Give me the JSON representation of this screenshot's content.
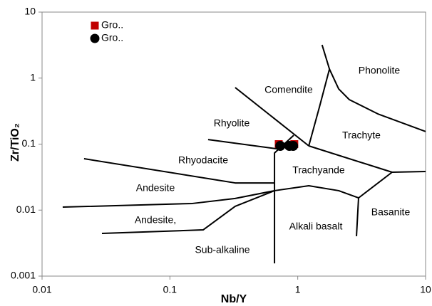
{
  "chart_data": {
    "type": "scatter",
    "xlabel": "Nb/Y",
    "ylabel": "Zr/TiO₂",
    "xscale": "log",
    "yscale": "log",
    "xlim": [
      0.01,
      10
    ],
    "ylim": [
      0.001,
      10
    ],
    "xticks": [
      0.01,
      0.1,
      1,
      10
    ],
    "yticks": [
      0.001,
      0.01,
      0.1,
      1,
      10
    ],
    "grid": false,
    "legend": "upper left",
    "series": [
      {
        "name": "Gro..",
        "color": "#c00000",
        "marker": "square",
        "x": [
          0.71,
          0.94
        ],
        "y": [
          0.1,
          0.1
        ]
      },
      {
        "name": "Gro..",
        "color": "#000000",
        "marker": "circle",
        "x": [
          0.73,
          0.86,
          0.92
        ],
        "y": [
          0.094,
          0.094,
          0.094
        ]
      }
    ],
    "boundaries": [
      {
        "x": [
          0.324,
          1.22
        ],
        "y": [
          0.72,
          0.094
        ]
      },
      {
        "x": [
          1.55,
          1.77,
          1.48,
          1.22
        ],
        "y": [
          3.19,
          1.37,
          0.368,
          0.094
        ]
      },
      {
        "x": [
          1.77,
          2.09,
          2.53,
          4.23,
          10
        ],
        "y": [
          1.37,
          0.686,
          0.472,
          0.287,
          0.155
        ]
      },
      {
        "x": [
          1.22,
          5.47,
          10
        ],
        "y": [
          0.094,
          0.0375,
          0.0385
        ]
      },
      {
        "x": [
          0.199,
          0.748
        ],
        "y": [
          0.117,
          0.083
        ]
      },
      {
        "x": [
          0.658,
          0.658,
          0.93
        ],
        "y": [
          0.00156,
          0.0733,
          0.136
        ]
      },
      {
        "x": [
          0.0213,
          0.324,
          0.658
        ],
        "y": [
          0.0601,
          0.0258,
          0.0258
        ]
      },
      {
        "x": [
          0.0145,
          0.15,
          0.324,
          0.658,
          1.22,
          2.09,
          2.99
        ],
        "y": [
          0.0111,
          0.0126,
          0.015,
          0.0197,
          0.0234,
          0.0197,
          0.0153
        ]
      },
      {
        "x": [
          2.88,
          2.99,
          5.47
        ],
        "y": [
          0.00402,
          0.0153,
          0.0375
        ]
      },
      {
        "x": [
          0.0294,
          0.182,
          0.324,
          0.658
        ],
        "y": [
          0.00443,
          0.00502,
          0.0114,
          0.0197
        ]
      }
    ],
    "annotations": [
      "Phonolite",
      "Comendite",
      "Rhyolite",
      "Trachyte",
      "Rhyodacite",
      "Trachyande",
      "Andesite",
      "Basanite",
      "Andesite,",
      "Alkali basalt",
      "Sub-alkaline"
    ]
  }
}
